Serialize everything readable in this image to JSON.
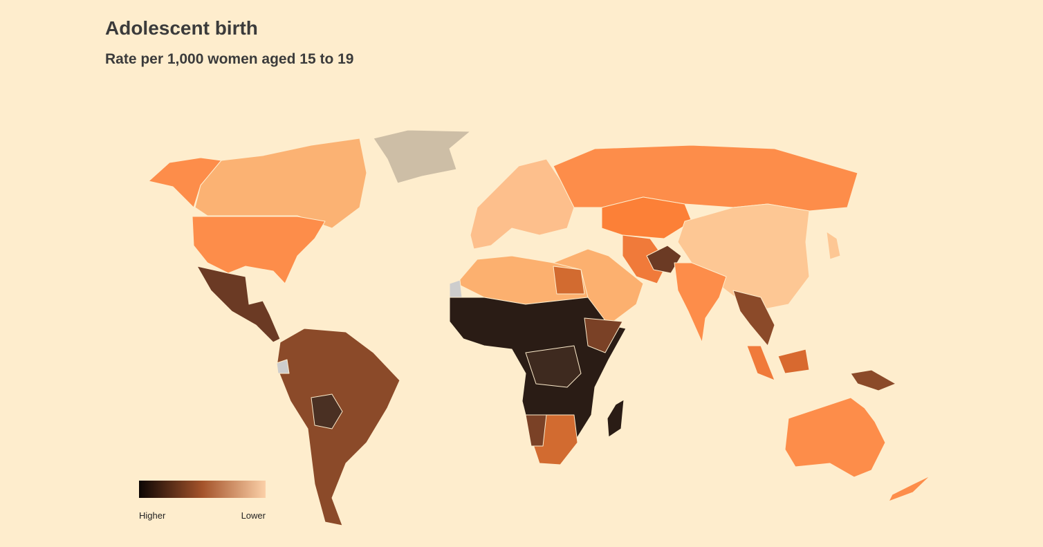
{
  "header": {
    "title": "Adolescent birth",
    "subtitle": "Rate per 1,000 women aged 15 to 19"
  },
  "legend": {
    "high_label": "Higher",
    "low_label": "Lower"
  }
}
